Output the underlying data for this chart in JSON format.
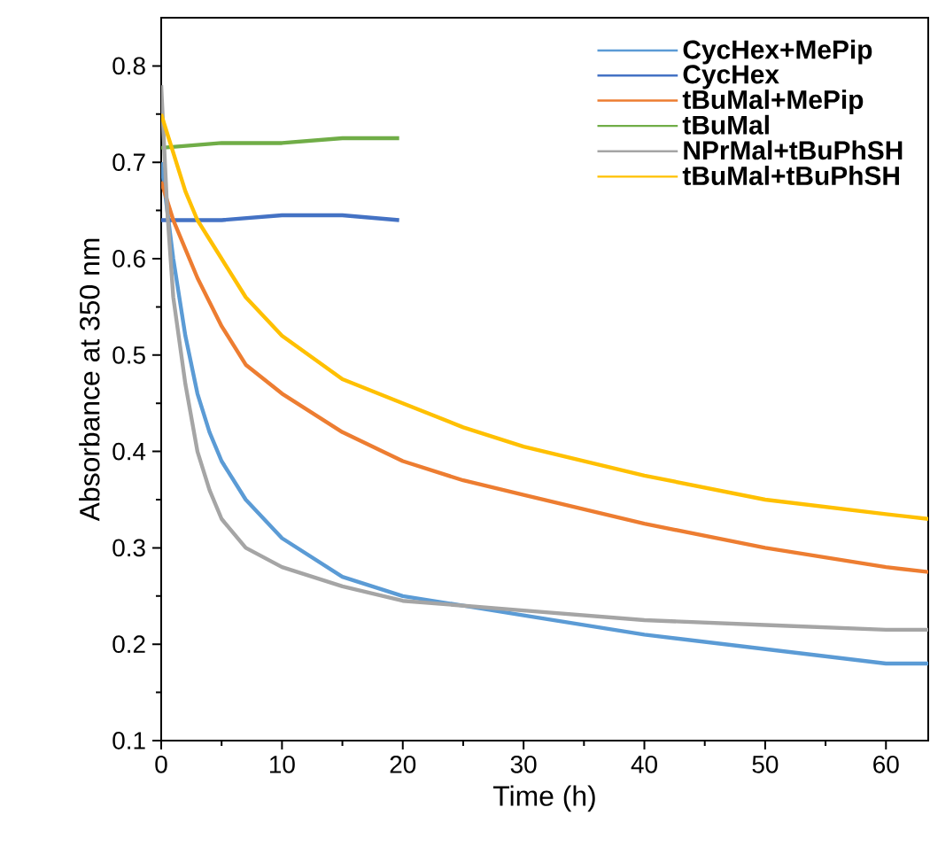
{
  "chart_data": {
    "type": "line",
    "xlabel": "Time (h)",
    "ylabel": "Absorbance at 350 nm",
    "xlim": [
      0,
      63.5
    ],
    "ylim": [
      0.1,
      0.85
    ],
    "xticks": [
      0,
      10,
      20,
      30,
      40,
      50,
      60
    ],
    "yticks": [
      0.1,
      0.2,
      0.3,
      0.4,
      0.5,
      0.6,
      0.7,
      0.8
    ],
    "legend": "top right",
    "grid": false,
    "marker": "none",
    "line_style": "solid",
    "series": [
      {
        "name": "CycHex+MePip",
        "color": "#5b9bd5",
        "x": [
          0,
          1,
          2,
          3,
          4,
          5,
          7,
          10,
          15,
          20,
          25,
          30,
          40,
          50,
          60,
          63.5
        ],
        "values": [
          0.7,
          0.6,
          0.52,
          0.46,
          0.42,
          0.39,
          0.35,
          0.31,
          0.27,
          0.25,
          0.24,
          0.23,
          0.21,
          0.195,
          0.18,
          0.18
        ]
      },
      {
        "name": "CycHex",
        "color": "#4472c4",
        "x": [
          0,
          5,
          10,
          15,
          19.7
        ],
        "values": [
          0.64,
          0.64,
          0.645,
          0.645,
          0.64
        ]
      },
      {
        "name": "tBuMal+MePip",
        "color": "#ed7d31",
        "x": [
          0,
          1,
          2,
          3,
          4,
          5,
          7,
          10,
          15,
          20,
          25,
          30,
          40,
          50,
          60,
          63.5
        ],
        "values": [
          0.68,
          0.64,
          0.61,
          0.58,
          0.555,
          0.53,
          0.49,
          0.46,
          0.42,
          0.39,
          0.37,
          0.355,
          0.325,
          0.3,
          0.28,
          0.275
        ]
      },
      {
        "name": "tBuMal",
        "color": "#70ad47",
        "x": [
          0,
          5,
          10,
          15,
          19.7
        ],
        "values": [
          0.715,
          0.72,
          0.72,
          0.725,
          0.725
        ]
      },
      {
        "name": "NPrMal+tBuPhSH",
        "color": "#a5a5a5",
        "x": [
          0,
          0.5,
          1,
          2,
          3,
          4,
          5,
          7,
          10,
          15,
          20,
          30,
          40,
          50,
          60,
          63.5
        ],
        "values": [
          0.78,
          0.65,
          0.56,
          0.47,
          0.4,
          0.36,
          0.33,
          0.3,
          0.28,
          0.26,
          0.245,
          0.235,
          0.225,
          0.22,
          0.215,
          0.215
        ]
      },
      {
        "name": "tBuMal+tBuPhSH",
        "color": "#ffc000",
        "x": [
          0,
          1,
          2,
          3,
          4,
          5,
          7,
          10,
          15,
          20,
          25,
          30,
          40,
          50,
          60,
          63.5
        ],
        "values": [
          0.75,
          0.71,
          0.67,
          0.64,
          0.62,
          0.6,
          0.56,
          0.52,
          0.475,
          0.45,
          0.425,
          0.405,
          0.375,
          0.35,
          0.335,
          0.33
        ]
      }
    ]
  }
}
